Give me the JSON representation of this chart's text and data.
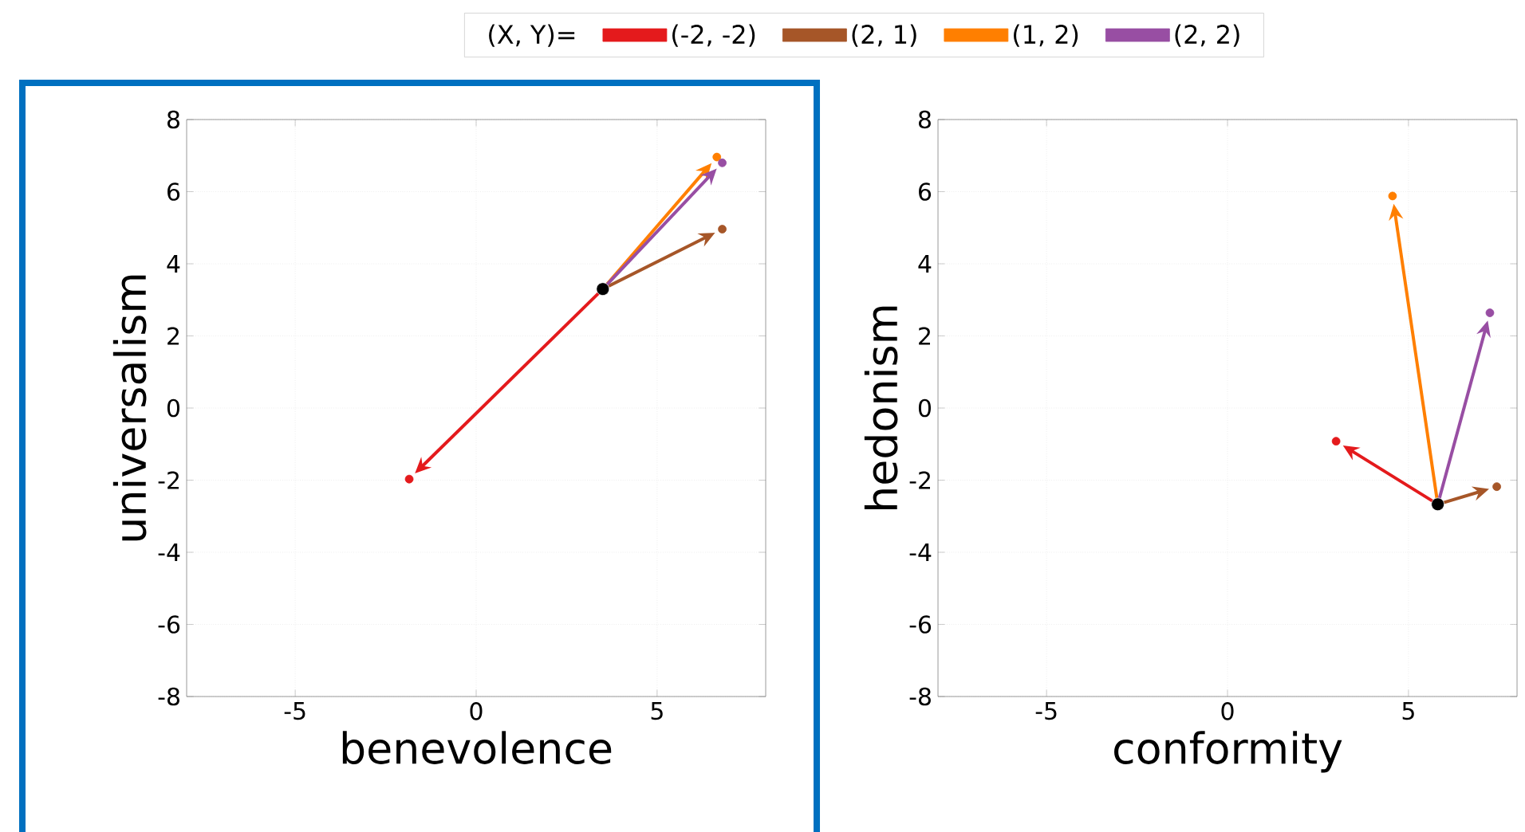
{
  "chart_data": [
    {
      "type": "scatter",
      "xlabel": "benevolence",
      "ylabel": "universalism",
      "xlim": [
        -8,
        8
      ],
      "ylim": [
        -8,
        8
      ],
      "xticks": [
        -5,
        0,
        5
      ],
      "yticks": [
        -8,
        -6,
        -4,
        -2,
        0,
        2,
        4,
        6,
        8
      ],
      "grid": true,
      "legend": "top",
      "legend_title": "(X, Y)=",
      "series": [
        {
          "name": "(-2, -2)",
          "color": "#e41a1c",
          "x": [
            -1.85
          ],
          "values": [
            -1.97
          ]
        },
        {
          "name": "(2, 1)",
          "color": "#a65628",
          "x": [
            6.8
          ],
          "values": [
            4.96
          ]
        },
        {
          "name": "(1, 2)",
          "color": "#ff7f00",
          "x": [
            6.65
          ],
          "values": [
            6.96
          ]
        },
        {
          "name": "(2, 2)",
          "color": "#984ea3",
          "x": [
            6.8
          ],
          "values": [
            6.8
          ]
        },
        {
          "color": "#000000",
          "x": [
            3.5
          ],
          "values": [
            3.3
          ]
        }
      ]
    },
    {
      "type": "scatter",
      "xlabel": "conformity",
      "ylabel": "hedonism",
      "xlim": [
        -8,
        8
      ],
      "ylim": [
        -8,
        8
      ],
      "xticks": [
        -5,
        0,
        5
      ],
      "yticks": [
        -8,
        -6,
        -4,
        -2,
        0,
        2,
        4,
        6,
        8
      ],
      "grid": true,
      "series": [
        {
          "color": "#e41a1c",
          "x": [
            3.0
          ],
          "values": [
            -0.92
          ]
        },
        {
          "color": "#a65628",
          "x": [
            7.44
          ],
          "values": [
            -2.18
          ]
        },
        {
          "color": "#ff7f00",
          "x": [
            4.56
          ],
          "values": [
            5.88
          ]
        },
        {
          "color": "#984ea3",
          "x": [
            7.25
          ],
          "values": [
            2.64
          ]
        },
        {
          "color": "#000000",
          "x": [
            5.81
          ],
          "values": [
            -2.67
          ]
        }
      ]
    }
  ]
}
